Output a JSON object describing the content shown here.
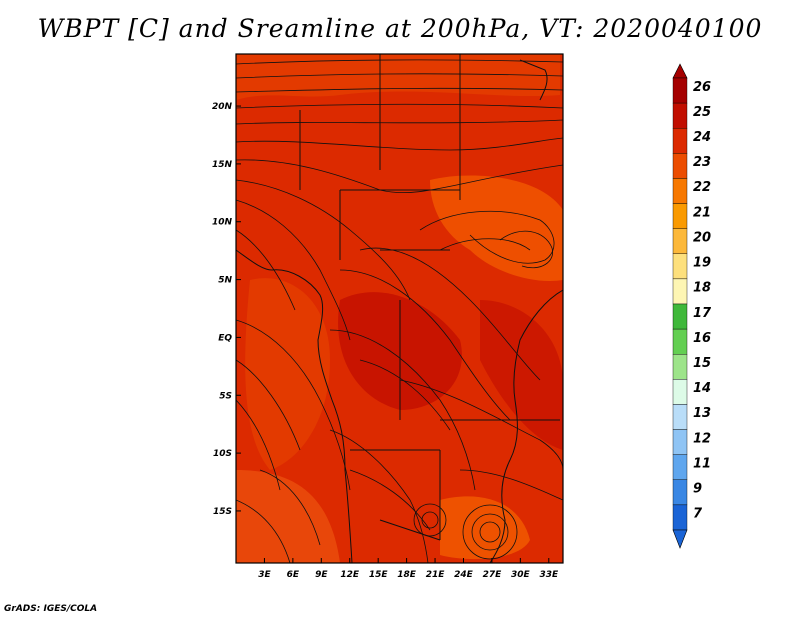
{
  "chart_data": {
    "type": "heatmap",
    "title": "WBPT [C] and Sreamline at 200hPa, VT: 2020040100",
    "variable": "WBPT [C]",
    "overlay": "streamlines",
    "level": "200hPa",
    "valid_time": "2020040100",
    "x_ticks": [
      "3E",
      "6E",
      "9E",
      "12E",
      "15E",
      "18E",
      "21E",
      "24E",
      "27E",
      "30E",
      "33E"
    ],
    "x_tick_values": [
      3,
      6,
      9,
      12,
      15,
      18,
      21,
      24,
      27,
      30,
      33
    ],
    "y_ticks": [
      "20N",
      "15N",
      "10N",
      "5N",
      "EQ",
      "5S",
      "10S",
      "15S"
    ],
    "y_tick_values": [
      20,
      15,
      10,
      5,
      0,
      -5,
      -10,
      -15
    ],
    "xlim": [
      0,
      34.5
    ],
    "ylim": [
      -19.5,
      24.5
    ],
    "colorbar": {
      "labels": [
        "26",
        "25",
        "24",
        "23",
        "22",
        "21",
        "20",
        "19",
        "18",
        "17",
        "16",
        "15",
        "14",
        "13",
        "12",
        "11",
        "9",
        "7"
      ],
      "colors": [
        "#a50000",
        "#c10e00",
        "#dc2a00",
        "#ec4d00",
        "#f77800",
        "#fa9a00",
        "#fcb83a",
        "#fde07d",
        "#fef6b4",
        "#3fb83a",
        "#63cf52",
        "#9de48a",
        "#ddfbe7",
        "#b9ddf8",
        "#8fc4f4",
        "#5fa6ee",
        "#3a87e4",
        "#1a64d6"
      ]
    },
    "field_values": {
      "dominant_range": [
        23,
        25
      ],
      "max_region": "central Africa, around 5N-10S",
      "min_region": "east of 27E near 10N"
    }
  },
  "credit": "GrADS: IGES/COLA"
}
